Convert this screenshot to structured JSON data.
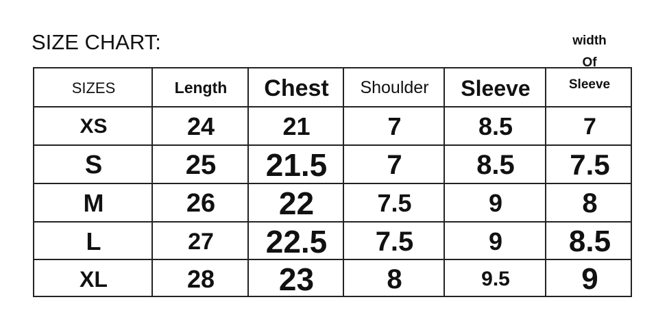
{
  "title": "SIZE CHART:",
  "headers": [
    "SIZES",
    "Length",
    "Chest",
    "Shoulder",
    "Sleeve",
    "width Of Sleeve"
  ],
  "width_of_sleeve_lines": [
    "width",
    "Of",
    "Sleeve"
  ],
  "rows": [
    [
      "XS",
      "24",
      "21",
      "7",
      "8.5",
      "7"
    ],
    [
      "S",
      "25",
      "21.5",
      "7",
      "8.5",
      "7.5"
    ],
    [
      "M",
      "26",
      "22",
      "7.5",
      "9",
      "8"
    ],
    [
      "L",
      "27",
      "22.5",
      "7.5",
      "9",
      "8.5"
    ],
    [
      "XL",
      "28",
      "23",
      "8",
      "9.5",
      "9"
    ]
  ]
}
